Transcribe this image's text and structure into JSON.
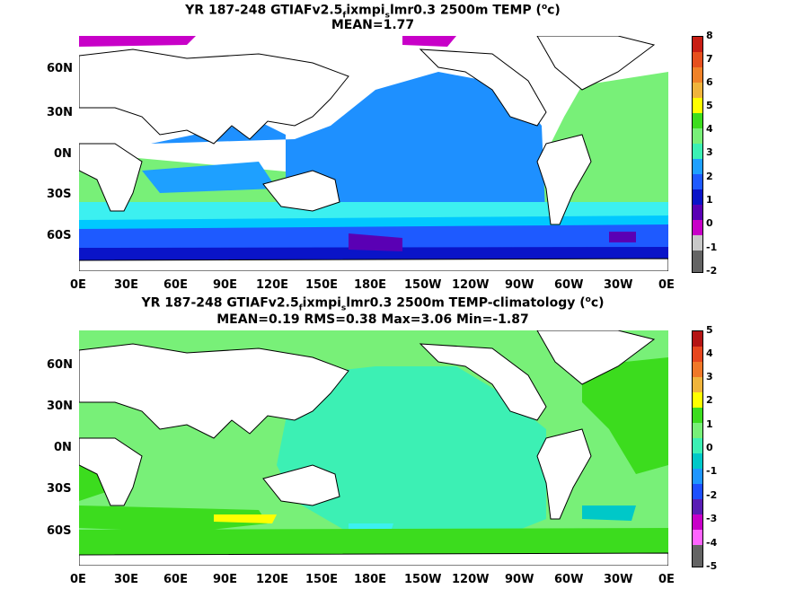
{
  "panel1": {
    "title_line1": "YR 187-248 GTIAFv2.5",
    "title_sub1": "f",
    "title_mid": "ixmpi",
    "title_sub2": "s",
    "title_rest": "lmr0.3 2500m TEMP (",
    "title_sup": "o",
    "title_end": "c)",
    "title_line2": "MEAN=1.77",
    "colorbar_labels": [
      "8",
      "7",
      "6",
      "5",
      "4",
      "3",
      "2",
      "1",
      "0",
      "-1",
      "-2"
    ],
    "colorbar_colors": [
      "#c81e14",
      "#e6501e",
      "#f08228",
      "#f0b43c",
      "#ffff00",
      "#3cdc1e",
      "#78f078",
      "#3cf0b4",
      "#1ea0ff",
      "#1e5aff",
      "#0a14c8",
      "#5a00b4",
      "#c800c8",
      "#c8c8c8",
      "#646464"
    ]
  },
  "panel2": {
    "title_line1": "YR 187-248 GTIAFv2.5",
    "title_sub1": "f",
    "title_mid": "ixmpi",
    "title_sub2": "s",
    "title_rest": "lmr0.3 2500m TEMP-climatology (",
    "title_sup": "o",
    "title_end": "c)",
    "title_line2": "MEAN=0.19   RMS=0.38   Max=3.06   Min=-1.87",
    "colorbar_labels": [
      "5",
      "4",
      "3",
      "2",
      "1",
      "0",
      "-1",
      "-2",
      "-3",
      "-4",
      "-5"
    ],
    "colorbar_colors": [
      "#b41414",
      "#e6461e",
      "#f07828",
      "#f0b43c",
      "#ffff00",
      "#3cdc1e",
      "#78f078",
      "#3cf0b4",
      "#00c8c8",
      "#1e96ff",
      "#1e50ff",
      "#5a1eb4",
      "#c800c8",
      "#ff64ff",
      "#646464"
    ]
  },
  "lat_labels": [
    "60N",
    "30N",
    "0N",
    "30S",
    "60S"
  ],
  "lon_labels": [
    "0E",
    "30E",
    "60E",
    "90E",
    "120E",
    "150E",
    "180E",
    "150W",
    "120W",
    "90W",
    "60W",
    "30W",
    "0E"
  ]
}
